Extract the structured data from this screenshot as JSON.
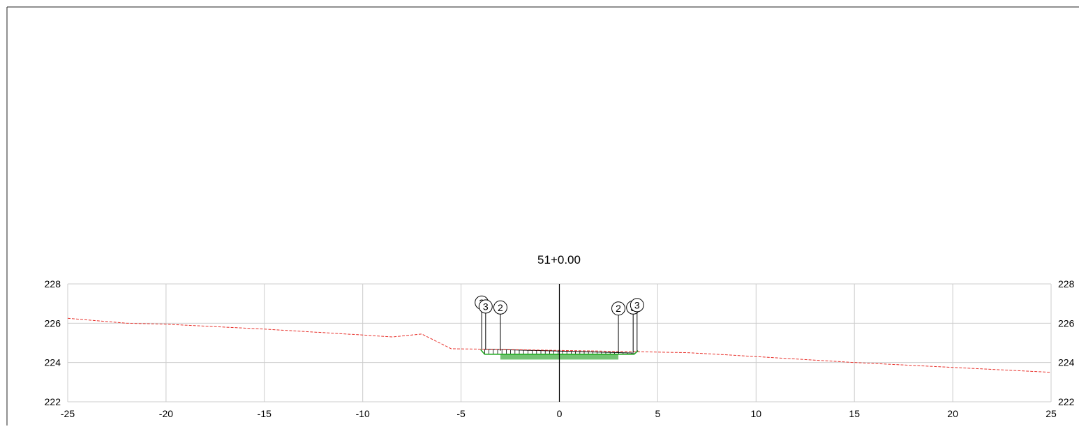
{
  "section": {
    "station_label": "51+0.00"
  },
  "chart_data": {
    "type": "line",
    "title": "51+0.00",
    "xlim": [
      -25,
      25
    ],
    "ylim": [
      222,
      228
    ],
    "x_ticks": [
      -25,
      -20,
      -15,
      -10,
      -5,
      0,
      5,
      10,
      15,
      20,
      25
    ],
    "y_ticks": [
      222,
      224,
      226,
      228
    ],
    "x_tick_labels": [
      "-25",
      "-20",
      "-15",
      "-10",
      "-5",
      "0",
      "5",
      "10",
      "15",
      "20",
      "25"
    ],
    "y_tick_labels_left": [
      "222",
      "224",
      "226",
      "228"
    ],
    "y_tick_labels_right": [
      "222",
      "224",
      "226",
      "228"
    ],
    "grid": true,
    "colors": {
      "existing_ground": "#e8312b",
      "design_surface": "#22aa22",
      "pavement_fill": "#5cb85c",
      "grid": "#cccccc",
      "annotation": "#000000",
      "centerline": "#000000"
    },
    "series": [
      {
        "style": "dashed",
        "color": "#e8312b",
        "x": [
          -25,
          -22,
          -20,
          -15,
          -10,
          -8.5,
          -7,
          -5.5,
          -4,
          4,
          6.5,
          8,
          10,
          15,
          20,
          25
        ],
        "y": [
          226.25,
          226.0,
          225.95,
          225.7,
          225.4,
          225.3,
          225.45,
          224.7,
          224.68,
          224.55,
          224.5,
          224.42,
          224.3,
          224.0,
          223.75,
          223.5
        ]
      },
      {
        "style": "solid",
        "color": "#22aa22",
        "x": [
          -4.0,
          -3.8,
          -3.0,
          0,
          3.0,
          3.8,
          4.0
        ],
        "y": [
          224.65,
          224.42,
          224.42,
          224.42,
          224.42,
          224.42,
          224.6
        ]
      }
    ],
    "pavement": {
      "x": [
        -3.0,
        3.0
      ],
      "y_top": 224.42,
      "y_bottom": 224.15
    },
    "design_top": {
      "x": [
        -3.8,
        3.8
      ],
      "y": [
        224.68,
        224.48
      ]
    },
    "centerline": {
      "x": 0,
      "y_range": [
        222,
        228
      ]
    },
    "callouts": [
      {
        "label": "3",
        "x": -3.95,
        "y_base": 224.65,
        "y_label": 227.05
      },
      {
        "label": "3",
        "x": -3.75,
        "y_base": 224.65,
        "y_label": 226.85
      },
      {
        "label": "2",
        "x": -3.0,
        "y_base": 224.6,
        "y_label": 226.8
      },
      {
        "label": "2",
        "x": 3.0,
        "y_base": 224.48,
        "y_label": 226.75
      },
      {
        "label": "3",
        "x": 3.75,
        "y_base": 224.52,
        "y_label": 226.8
      },
      {
        "label": "3",
        "x": 3.95,
        "y_base": 224.55,
        "y_label": 226.92
      }
    ]
  }
}
